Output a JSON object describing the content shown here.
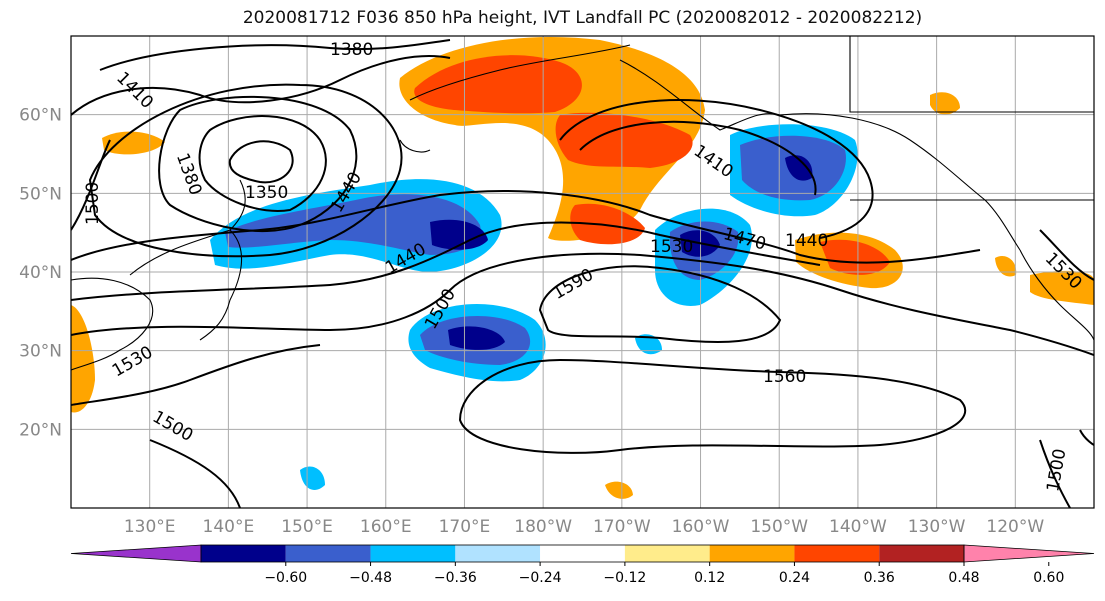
{
  "title": "2020081712 F036 850 hPa height, IVT Landfall PC (2020082012 - 2020082212)",
  "lat_labels": [
    "60°N",
    "50°N",
    "40°N",
    "30°N",
    "20°N"
  ],
  "lon_labels": [
    "130°E",
    "140°E",
    "150°E",
    "160°E",
    "170°E",
    "180°W",
    "170°W",
    "160°W",
    "150°W",
    "140°W",
    "130°W",
    "120°W"
  ],
  "contour_labels": [
    "1380",
    "1410",
    "1380",
    "1350",
    "1440",
    "1440",
    "1500",
    "1500",
    "1530",
    "1500",
    "1590",
    "1530",
    "1470",
    "1440",
    "1410",
    "1560",
    "1530",
    "1500"
  ],
  "colorbar": {
    "colors": [
      "#9933cc",
      "#00008b",
      "#3a5fcd",
      "#00bfff",
      "#b0e2ff",
      "#ffffff",
      "#ffec8b",
      "#ffa500",
      "#ff4500",
      "#b22222",
      "#ff82ab"
    ],
    "ticks": [
      "−0.60",
      "−0.48",
      "−0.36",
      "−0.24",
      "−0.12",
      "0.12",
      "0.24",
      "0.36",
      "0.48",
      "0.60"
    ]
  },
  "extent": {
    "lon_min": 120,
    "lon_max": 250,
    "lat_min": 10,
    "lat_max": 70
  }
}
